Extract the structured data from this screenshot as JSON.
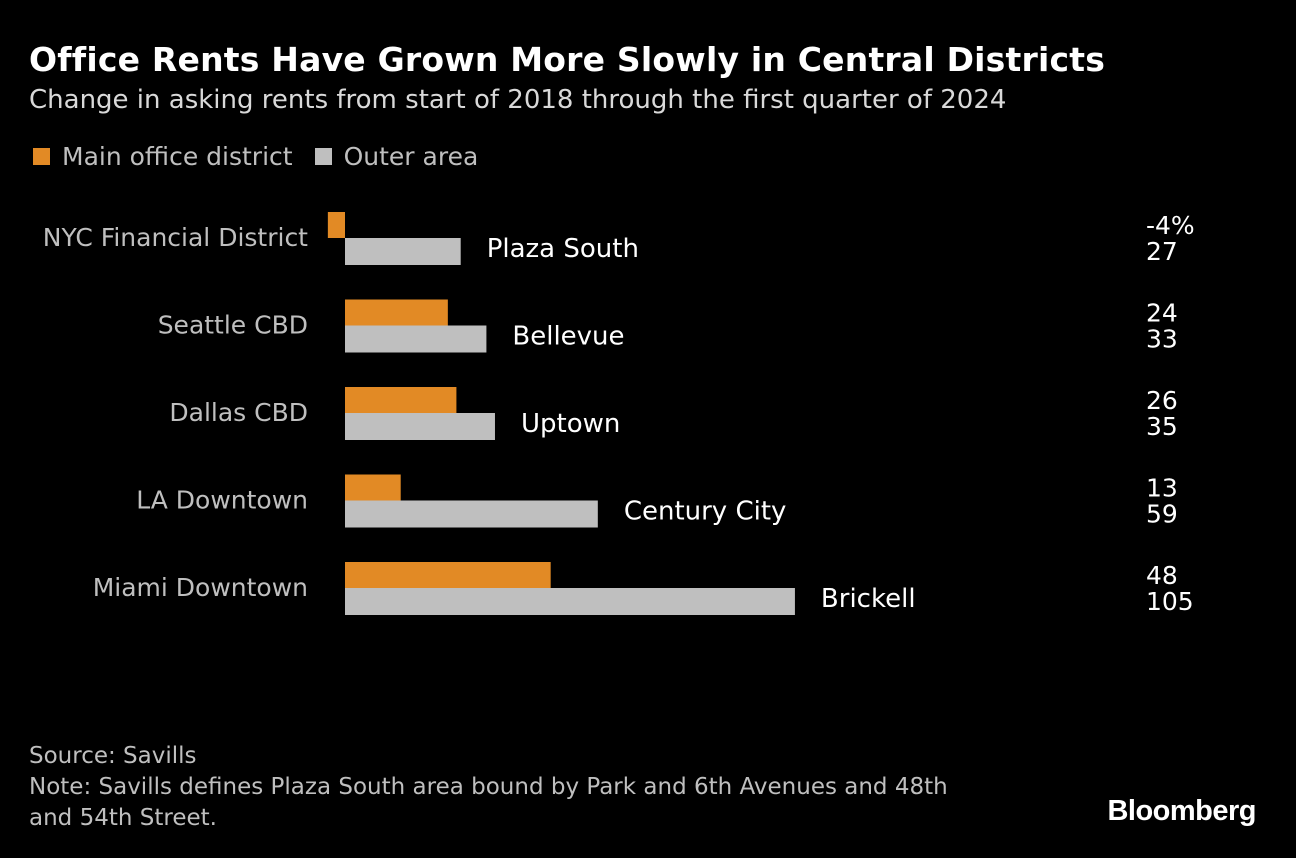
{
  "title": "Office Rents Have Grown More Slowly in Central Districts",
  "subtitle": "Change in asking rents from start of 2018 through the first quarter of 2024",
  "legend": [
    {
      "label": "Main office district",
      "color": "#e28a25"
    },
    {
      "label": "Outer area",
      "color": "#bfbfbf"
    }
  ],
  "chart_data": {
    "type": "bar",
    "orientation": "horizontal",
    "categories": [
      "NYC Financial District",
      "Seattle CBD",
      "Dallas CBD",
      "LA Downtown",
      "Miami Downtown"
    ],
    "outer_area_names": [
      "Plaza South",
      "Bellevue",
      "Uptown",
      "Century City",
      "Brickell"
    ],
    "series": [
      {
        "name": "Main office district",
        "color": "#e28a25",
        "values": [
          -4,
          24,
          26,
          13,
          48
        ],
        "labels": [
          "-4%",
          "24",
          "26",
          "13",
          "48"
        ]
      },
      {
        "name": "Outer area",
        "color": "#bfbfbf",
        "values": [
          27,
          33,
          35,
          59,
          105
        ],
        "labels": [
          "27",
          "33",
          "35",
          "59",
          "105"
        ]
      }
    ],
    "unit": "%",
    "xlim": [
      -4,
      105
    ]
  },
  "footer": {
    "source": "Source: Savills",
    "note_line1": "Note: Savills defines Plaza South area bound by Park and 6th Avenues and 48th",
    "note_line2": "and 54th Street."
  },
  "brand": "Bloomberg"
}
